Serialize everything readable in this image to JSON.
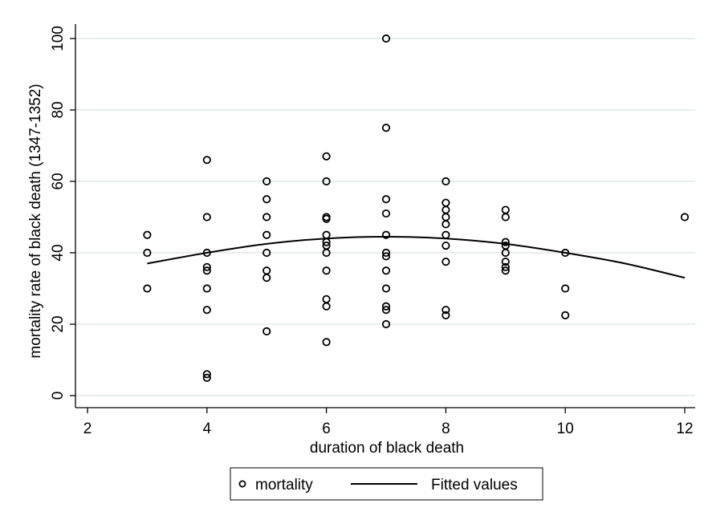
{
  "chart_data": {
    "type": "scatter",
    "xlabel": "duration of black death",
    "ylabel": "mortality rate of black death (1347-1352)",
    "xlim": [
      2,
      12
    ],
    "ylim": [
      0,
      100
    ],
    "xticks": [
      2,
      4,
      6,
      8,
      10,
      12
    ],
    "yticks": [
      0,
      20,
      40,
      60,
      80,
      100
    ],
    "grid": true,
    "legend_position": "bottom",
    "series": [
      {
        "name": "mortality",
        "kind": "scatter",
        "marker": "hollow-circle",
        "points": [
          [
            3,
            45
          ],
          [
            3,
            40
          ],
          [
            3,
            30
          ],
          [
            4,
            66
          ],
          [
            4,
            50
          ],
          [
            4,
            40
          ],
          [
            4,
            36
          ],
          [
            4,
            35
          ],
          [
            4,
            30
          ],
          [
            4,
            24
          ],
          [
            4,
            6
          ],
          [
            4,
            5
          ],
          [
            5,
            60
          ],
          [
            5,
            55
          ],
          [
            5,
            50
          ],
          [
            5,
            45
          ],
          [
            5,
            40
          ],
          [
            5,
            35
          ],
          [
            5,
            33
          ],
          [
            5,
            18
          ],
          [
            6,
            67
          ],
          [
            6,
            60
          ],
          [
            6,
            50
          ],
          [
            6,
            49.5
          ],
          [
            6,
            45
          ],
          [
            6,
            43
          ],
          [
            6,
            42
          ],
          [
            6,
            40
          ],
          [
            6,
            35
          ],
          [
            6,
            27
          ],
          [
            6,
            25
          ],
          [
            6,
            15
          ],
          [
            7,
            100
          ],
          [
            7,
            75
          ],
          [
            7,
            55
          ],
          [
            7,
            51
          ],
          [
            7,
            45
          ],
          [
            7,
            40
          ],
          [
            7,
            39
          ],
          [
            7,
            35
          ],
          [
            7,
            30
          ],
          [
            7,
            25
          ],
          [
            7,
            24
          ],
          [
            7,
            20
          ],
          [
            8,
            60
          ],
          [
            8,
            54
          ],
          [
            8,
            52
          ],
          [
            8,
            50
          ],
          [
            8,
            48
          ],
          [
            8,
            45
          ],
          [
            8,
            42
          ],
          [
            8,
            37.5
          ],
          [
            8,
            24
          ],
          [
            8,
            22.5
          ],
          [
            9,
            52
          ],
          [
            9,
            50
          ],
          [
            9,
            43
          ],
          [
            9,
            42
          ],
          [
            9,
            40
          ],
          [
            9,
            37.5
          ],
          [
            9,
            36
          ],
          [
            9,
            35
          ],
          [
            10,
            40
          ],
          [
            10,
            30
          ],
          [
            10,
            22.5
          ],
          [
            12,
            50
          ]
        ]
      },
      {
        "name": "Fitted values",
        "kind": "line",
        "points": [
          [
            3,
            37
          ],
          [
            4,
            40
          ],
          [
            5,
            42.5
          ],
          [
            6,
            44
          ],
          [
            7,
            44.5
          ],
          [
            8,
            44
          ],
          [
            9,
            42.5
          ],
          [
            10,
            40
          ],
          [
            11,
            37
          ],
          [
            12,
            33
          ]
        ]
      }
    ]
  },
  "colors": {
    "grid": "#dde8e8",
    "axis": "#000000",
    "marker": "#000000",
    "line": "#000000"
  }
}
